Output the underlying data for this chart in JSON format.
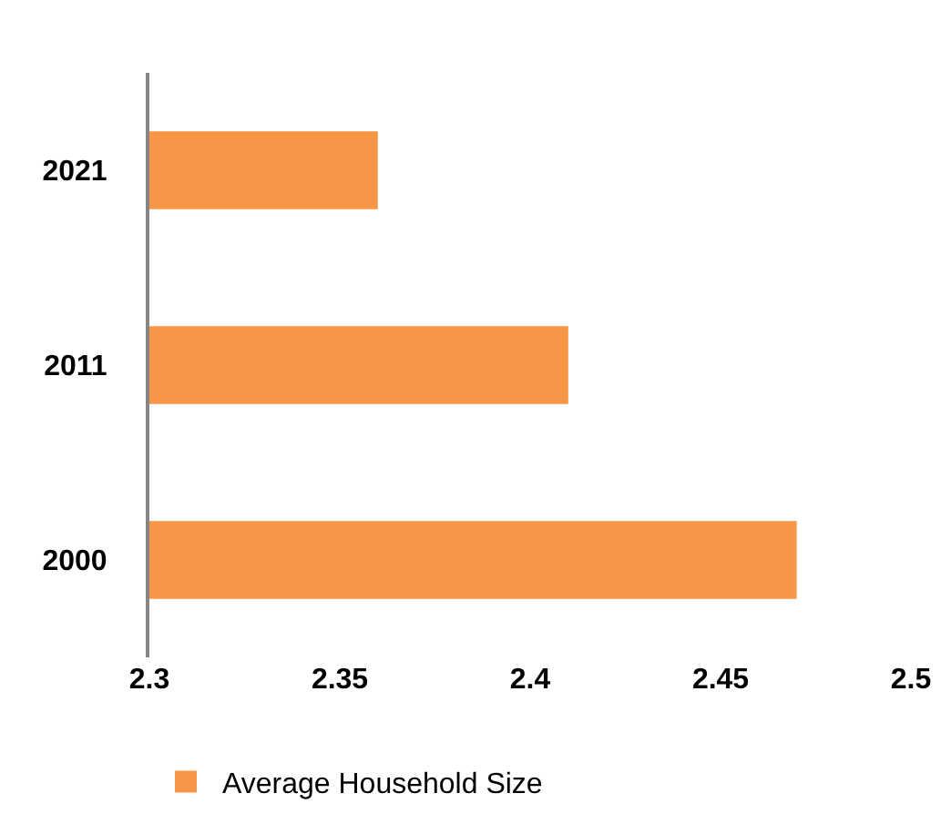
{
  "chart_data": {
    "type": "bar",
    "orientation": "horizontal",
    "categories": [
      "2021",
      "2011",
      "2000"
    ],
    "series": [
      {
        "name": "Average Household Size",
        "color": "#f79646",
        "values": [
          2.36,
          2.41,
          2.47
        ]
      }
    ],
    "xlim": [
      2.3,
      2.5
    ],
    "xticks": [
      2.3,
      2.35,
      2.4,
      2.45,
      2.5
    ],
    "grid": false,
    "legend": "bottom"
  }
}
